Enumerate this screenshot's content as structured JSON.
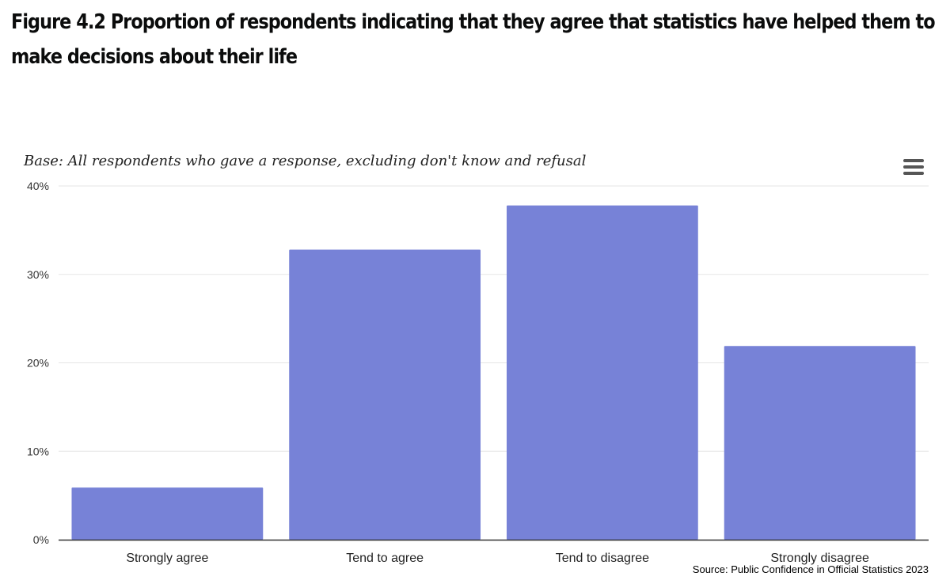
{
  "header": {
    "title": "Figure 4.2 Proportion of respondents indicating that they agree that statistics have helped them to make decisions about their life"
  },
  "chart_data": {
    "type": "bar",
    "subtitle": "Base: All respondents who gave a response, excluding don't know and refusal",
    "categories": [
      "Strongly agree",
      "Tend to agree",
      "Tend to disagree",
      "Strongly disagree"
    ],
    "values": [
      5.9,
      32.8,
      37.8,
      21.9
    ],
    "y_ticks": [
      "0%",
      "10%",
      "20%",
      "30%",
      "40%"
    ],
    "ylim": [
      0,
      40
    ],
    "grid": true,
    "bar_color": "#7782d7",
    "source": "Source: Public Confidence in Official Statistics 2023"
  },
  "toolbar": {
    "menu_icon": "hamburger-menu-icon"
  }
}
